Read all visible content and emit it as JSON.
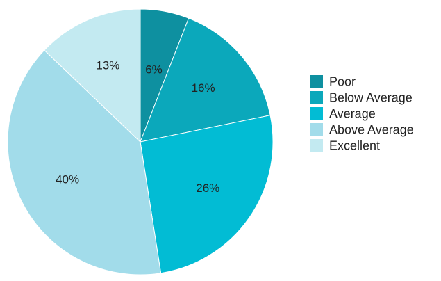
{
  "chart_data": {
    "type": "pie",
    "title": "",
    "slices": [
      {
        "label": "Poor",
        "value": 6,
        "display": "6%",
        "color": "#0e90a0"
      },
      {
        "label": "Below Average",
        "value": 16,
        "display": "16%",
        "color": "#0ba8bb"
      },
      {
        "label": "Average",
        "value": 26,
        "display": "26%",
        "color": "#02bcd4"
      },
      {
        "label": "Above Average",
        "value": 40,
        "display": "40%",
        "color": "#a2dcea"
      },
      {
        "label": "Excellent",
        "value": 13,
        "display": "13%",
        "color": "#c3eaf1"
      }
    ],
    "legend_position": "right",
    "start_angle": "top",
    "direction": "clockwise"
  }
}
